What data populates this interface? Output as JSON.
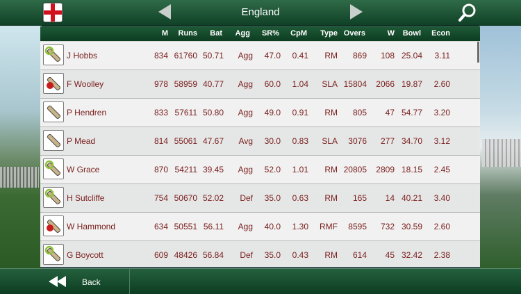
{
  "header": {
    "title": "England"
  },
  "columns": [
    "M",
    "Runs",
    "Bat",
    "Agg",
    "SR%",
    "CpM",
    "Type",
    "Overs",
    "W",
    "Bowl",
    "Econ"
  ],
  "rows": [
    {
      "role": "all-rounder",
      "name": "J Hobbs",
      "m": "834",
      "runs": "61760",
      "bat": "50.71",
      "agg": "Agg",
      "sr": "47.0",
      "cpm": "0.41",
      "type": "RM",
      "overs": "869",
      "w": "108",
      "bowl": "25.04",
      "econ": "3.11"
    },
    {
      "role": "bowler",
      "name": "F Woolley",
      "m": "978",
      "runs": "58959",
      "bat": "40.77",
      "agg": "Agg",
      "sr": "60.0",
      "cpm": "1.04",
      "type": "SLA",
      "overs": "15804",
      "w": "2066",
      "bowl": "19.87",
      "econ": "2.60"
    },
    {
      "role": "batsman",
      "name": "P Hendren",
      "m": "833",
      "runs": "57611",
      "bat": "50.80",
      "agg": "Agg",
      "sr": "49.0",
      "cpm": "0.91",
      "type": "RM",
      "overs": "805",
      "w": "47",
      "bowl": "54.77",
      "econ": "3.20"
    },
    {
      "role": "batsman",
      "name": "P Mead",
      "m": "814",
      "runs": "55061",
      "bat": "47.67",
      "agg": "Avg",
      "sr": "30.0",
      "cpm": "0.83",
      "type": "SLA",
      "overs": "3076",
      "w": "277",
      "bowl": "34.70",
      "econ": "3.12"
    },
    {
      "role": "all-rounder",
      "name": "W Grace",
      "m": "870",
      "runs": "54211",
      "bat": "39.45",
      "agg": "Agg",
      "sr": "52.0",
      "cpm": "1.01",
      "type": "RM",
      "overs": "20805",
      "w": "2809",
      "bowl": "18.15",
      "econ": "2.45"
    },
    {
      "role": "all-rounder",
      "name": "H Sutcliffe",
      "m": "754",
      "runs": "50670",
      "bat": "52.02",
      "agg": "Def",
      "sr": "35.0",
      "cpm": "0.63",
      "type": "RM",
      "overs": "165",
      "w": "14",
      "bowl": "40.21",
      "econ": "3.40"
    },
    {
      "role": "bowler",
      "name": "W Hammond",
      "m": "634",
      "runs": "50551",
      "bat": "56.11",
      "agg": "Agg",
      "sr": "40.0",
      "cpm": "1.30",
      "type": "RMF",
      "overs": "8595",
      "w": "732",
      "bowl": "30.59",
      "econ": "2.60"
    },
    {
      "role": "all-rounder",
      "name": "G Boycott",
      "m": "609",
      "runs": "48426",
      "bat": "56.84",
      "agg": "Def",
      "sr": "35.0",
      "cpm": "0.43",
      "type": "RM",
      "overs": "614",
      "w": "45",
      "bowl": "32.42",
      "econ": "2.38"
    }
  ],
  "footer": {
    "back_label": "Back"
  },
  "colors": {
    "bar_green": "#0f4126",
    "value_text": "#7a1d1d",
    "flag_red": "#d1101d",
    "ball_red": "#c81b1b",
    "bat_green": "#8fc23a"
  },
  "icons": [
    "england-flag-icon",
    "arrow-left-icon",
    "arrow-right-icon",
    "search-icon",
    "bat-icon",
    "ball-icon",
    "back-arrows-icon"
  ]
}
